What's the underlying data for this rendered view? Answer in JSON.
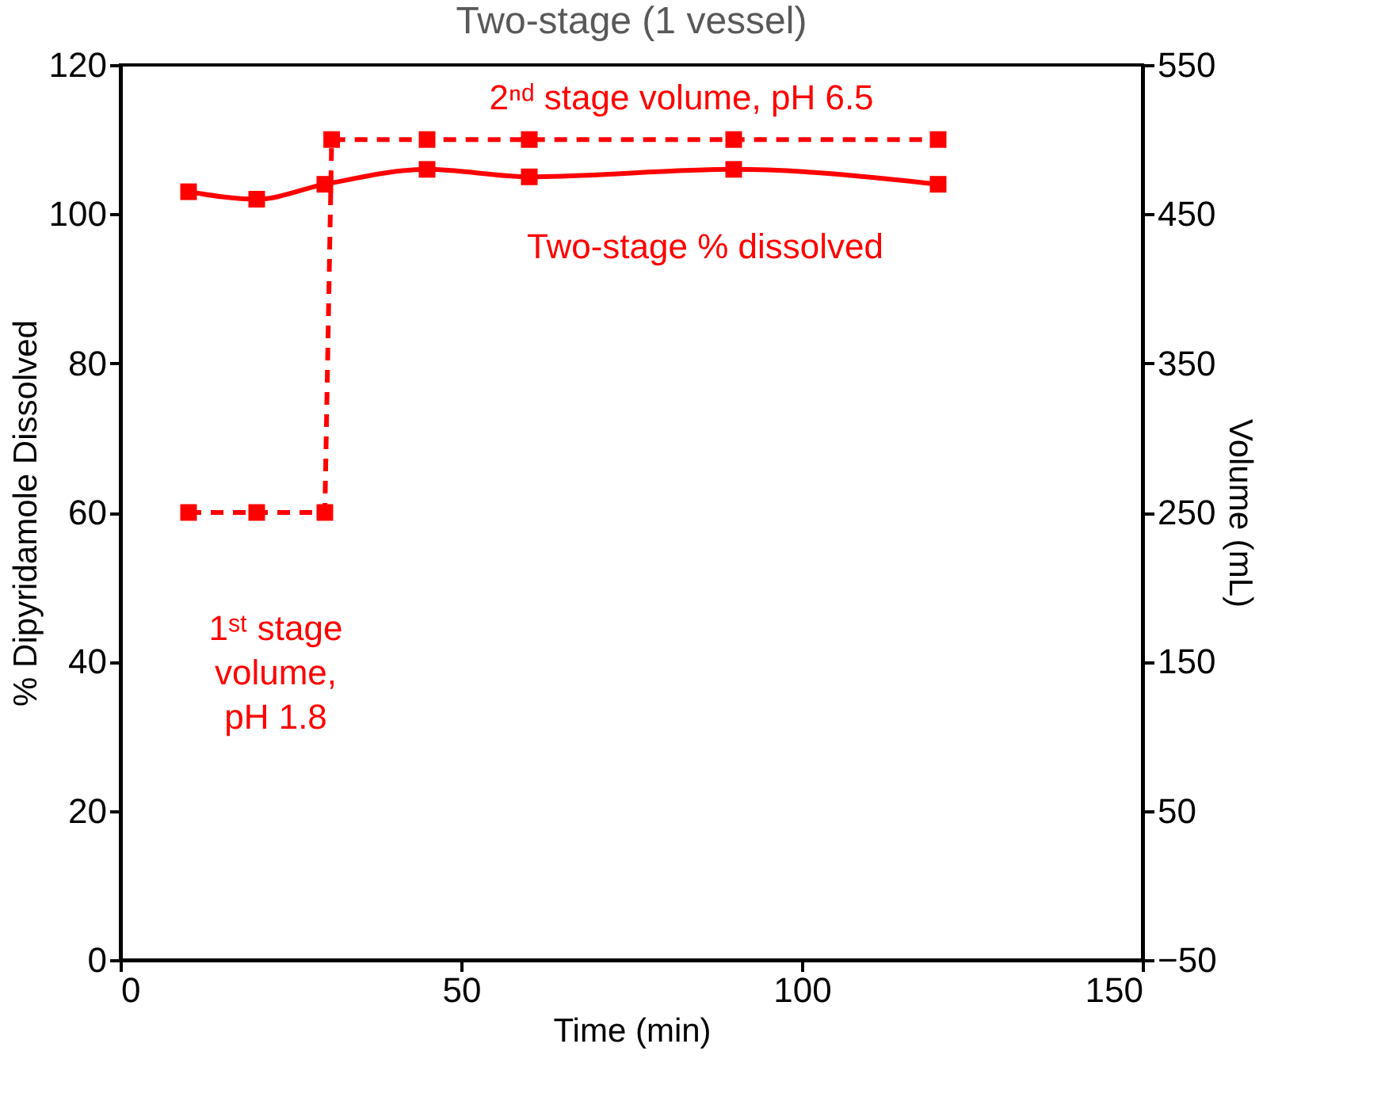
{
  "chart_data": {
    "type": "line",
    "title": "Two-stage (1 vessel)",
    "xlabel": "Time (min)",
    "ylabel": "% Dipyridamole Dissolved",
    "y2label": "Volume (mL)",
    "xlim": [
      0,
      150
    ],
    "xticks": [
      0,
      50,
      100,
      150
    ],
    "ylim": [
      0,
      120
    ],
    "yticks": [
      0,
      20,
      40,
      60,
      80,
      100,
      120
    ],
    "y2lim": [
      -50,
      550
    ],
    "y2ticks": [
      -50,
      50,
      150,
      250,
      350,
      450,
      550
    ],
    "grid": false,
    "marker": "square",
    "series": [
      {
        "axis": "y",
        "color": "#ff0000",
        "line_style": "solid",
        "x": [
          10,
          20,
          30,
          45,
          60,
          90,
          120
        ],
        "values": [
          103,
          102,
          104,
          106,
          105,
          106,
          104
        ]
      },
      {
        "axis": "y2",
        "color": "#ff0000",
        "line_style": "dashed",
        "x": [
          10,
          20,
          30,
          31,
          45,
          60,
          90,
          120
        ],
        "values": [
          250,
          250,
          250,
          500,
          500,
          500,
          500,
          500
        ]
      }
    ],
    "annotations": [
      "2ⁿᵈ stage volume, pH 6.5",
      "Two-stage % dissolved",
      "1ˢᵗ stage\nvolume,\npH 1.8"
    ]
  }
}
